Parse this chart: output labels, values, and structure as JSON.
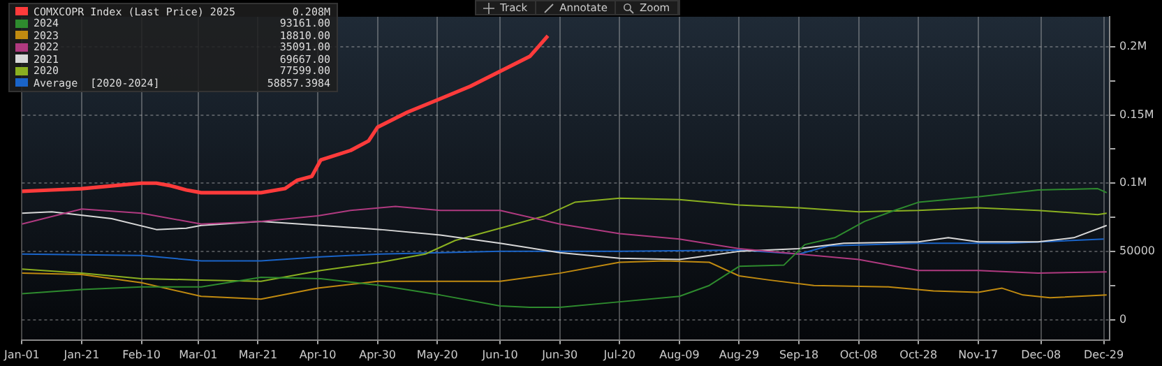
{
  "chart_data": {
    "type": "line",
    "xlim": [
      "--01-01",
      "--12-31"
    ],
    "xticks": [
      {
        "value": "--01-01",
        "label": "Jan-01"
      },
      {
        "value": "--01-21",
        "label": "Jan-21"
      },
      {
        "value": "--02-10",
        "label": "Feb-10"
      },
      {
        "value": "--03-01",
        "label": "Mar-01"
      },
      {
        "value": "--03-21",
        "label": "Mar-21"
      },
      {
        "value": "--04-10",
        "label": "Apr-10"
      },
      {
        "value": "--04-30",
        "label": "Apr-30"
      },
      {
        "value": "--05-20",
        "label": "May-20"
      },
      {
        "value": "--06-10",
        "label": "Jun-10"
      },
      {
        "value": "--06-30",
        "label": "Jun-30"
      },
      {
        "value": "--07-20",
        "label": "Jul-20"
      },
      {
        "value": "--08-09",
        "label": "Aug-09"
      },
      {
        "value": "--08-29",
        "label": "Aug-29"
      },
      {
        "value": "--09-18",
        "label": "Sep-18"
      },
      {
        "value": "--10-08",
        "label": "Oct-08"
      },
      {
        "value": "--10-28",
        "label": "Oct-28"
      },
      {
        "value": "--11-17",
        "label": "Nov-17"
      },
      {
        "value": "--12-08",
        "label": "Dec-08"
      },
      {
        "value": "--12-29",
        "label": "Dec-29"
      }
    ],
    "ylim": [
      -15000,
      222000
    ],
    "yticks": [
      0,
      {
        "value": 25000,
        "label": null
      },
      50000,
      {
        "value": 75000,
        "label": null
      },
      {
        "value": 100000,
        "label": "0.1M"
      },
      {
        "value": 125000,
        "label": null
      },
      {
        "value": 150000,
        "label": "0.15M"
      },
      {
        "value": 175000,
        "label": null
      },
      {
        "value": 200000,
        "label": "0.2M"
      }
    ],
    "grid": true,
    "legend": "top left",
    "series": [
      {
        "name": "COMXCOPR Index (Last Price) 2025",
        "color": "#ff3b3b",
        "x": [
          "--01-01",
          "--01-11",
          "--01-21",
          "--01-31",
          "--02-10",
          "--02-15",
          "--02-20",
          "--02-25",
          "--03-02",
          "--03-12",
          "--03-22",
          "--03-30",
          "--04-03",
          "--04-08",
          "--04-11",
          "--04-21",
          "--04-27",
          "--04-30",
          "--05-10",
          "--05-20",
          "--05-31",
          "--06-10",
          "--06-20",
          "--06-26"
        ],
        "values": [
          94000,
          95000,
          96000,
          98000,
          100000,
          100000,
          98000,
          95000,
          93000,
          93000,
          93000,
          96000,
          102000,
          105000,
          117000,
          124000,
          131000,
          141000,
          152000,
          161000,
          171000,
          182000,
          193000,
          208000
        ]
      },
      {
        "name": "2024",
        "color": "#2e8b2e",
        "x": [
          "--01-01",
          "--01-21",
          "--02-10",
          "--03-02",
          "--03-22",
          "--04-11",
          "--05-01",
          "--05-21",
          "--06-10",
          "--06-20",
          "--06-30",
          "--07-20",
          "--08-09",
          "--08-19",
          "--08-29",
          "--09-13",
          "--09-20",
          "--09-30",
          "--10-10",
          "--10-20",
          "--10-28",
          "--11-17",
          "--12-07",
          "--12-27",
          "--12-30"
        ],
        "values": [
          19000,
          22000,
          24000,
          24000,
          31000,
          30000,
          25000,
          18000,
          10000,
          9000,
          9000,
          13000,
          17000,
          25000,
          39000,
          40000,
          55000,
          60000,
          72000,
          80000,
          86000,
          90000,
          95000,
          96000,
          93000
        ]
      },
      {
        "name": "2023",
        "color": "#c08a10",
        "x": [
          "--01-01",
          "--01-21",
          "--02-10",
          "--03-02",
          "--03-22",
          "--04-10",
          "--04-30",
          "--05-21",
          "--06-10",
          "--06-30",
          "--07-20",
          "--08-04",
          "--08-19",
          "--08-29",
          "--09-08",
          "--09-23",
          "--10-18",
          "--11-02",
          "--11-17",
          "--11-25",
          "--12-02",
          "--12-11",
          "--12-30"
        ],
        "values": [
          34000,
          33000,
          27000,
          17000,
          15000,
          23000,
          28000,
          28000,
          28000,
          34000,
          42000,
          43000,
          42000,
          32000,
          29000,
          25000,
          24000,
          21000,
          20000,
          23000,
          18000,
          16000,
          18000
        ]
      },
      {
        "name": "2022",
        "color": "#b03a80",
        "x": [
          "--01-01",
          "--01-21",
          "--02-10",
          "--03-02",
          "--03-22",
          "--04-10",
          "--04-21",
          "--05-06",
          "--05-21",
          "--06-10",
          "--06-30",
          "--07-20",
          "--08-09",
          "--08-29",
          "--09-18",
          "--10-08",
          "--10-28",
          "--11-17",
          "--12-07",
          "--12-30"
        ],
        "values": [
          70000,
          81000,
          78000,
          70000,
          72000,
          76000,
          80000,
          83000,
          80000,
          80000,
          70000,
          63000,
          59000,
          52000,
          48000,
          44000,
          36000,
          36000,
          34000,
          35000
        ]
      },
      {
        "name": "2021",
        "color": "#d8d8d8",
        "x": [
          "--01-01",
          "--01-11",
          "--01-31",
          "--02-15",
          "--02-25",
          "--03-02",
          "--03-22",
          "--04-11",
          "--05-01",
          "--05-21",
          "--06-10",
          "--06-30",
          "--07-20",
          "--08-09",
          "--08-29",
          "--09-18",
          "--10-03",
          "--10-28",
          "--11-07",
          "--11-17",
          "--12-07",
          "--12-19",
          "--12-30"
        ],
        "values": [
          78000,
          79000,
          74000,
          66000,
          67000,
          69000,
          72000,
          69000,
          66000,
          62000,
          56000,
          49000,
          45000,
          44000,
          50000,
          52000,
          56000,
          57000,
          60000,
          57000,
          57000,
          60000,
          69000
        ]
      },
      {
        "name": "2020",
        "color": "#8ab020",
        "x": [
          "--01-01",
          "--01-21",
          "--02-10",
          "--03-02",
          "--03-22",
          "--04-11",
          "--05-01",
          "--05-16",
          "--05-26",
          "--06-10",
          "--06-25",
          "--07-05",
          "--07-20",
          "--08-09",
          "--08-29",
          "--09-18",
          "--10-08",
          "--10-28",
          "--11-17",
          "--12-07",
          "--12-27",
          "--12-30"
        ],
        "values": [
          37000,
          34000,
          30000,
          29000,
          28000,
          36000,
          42000,
          48000,
          58000,
          67000,
          76000,
          86000,
          89000,
          88000,
          84000,
          82000,
          79000,
          80000,
          82000,
          80000,
          77000,
          78000
        ]
      },
      {
        "name": "Average  [2020-2024]",
        "color": "#1a64c8",
        "x": [
          "--01-01",
          "--02-10",
          "--03-02",
          "--03-22",
          "--04-11",
          "--05-01",
          "--06-10",
          "--06-30",
          "--07-20",
          "--08-29",
          "--09-18",
          "--09-28",
          "--10-28",
          "--11-27",
          "--12-29"
        ],
        "values": [
          48000,
          47000,
          43000,
          43000,
          46000,
          48000,
          50000,
          50000,
          50000,
          51000,
          48000,
          54000,
          56000,
          56000,
          59000
        ]
      }
    ],
    "annotations": [
      "0.208M",
      "93161.00",
      "18810.00",
      "35091.00",
      "69667.00",
      "77599.00",
      "58857.3984",
      "Track",
      "Annotate",
      "Zoom"
    ]
  }
}
